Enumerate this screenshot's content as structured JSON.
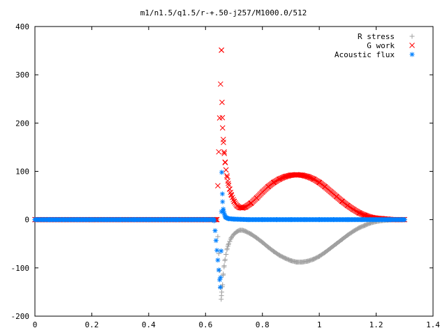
{
  "chart_data": {
    "type": "scatter",
    "title": "m1/n1.5/q1.5/r-+.50-j257/M1000.0/512",
    "xlabel": "",
    "ylabel": "",
    "xlim": [
      0,
      1.4
    ],
    "ylim": [
      -200,
      400
    ],
    "x_ticks": [
      "0",
      "0.2",
      "0.4",
      "0.6",
      "0.8",
      "1",
      "1.2",
      "1.4"
    ],
    "y_ticks": [
      "-200",
      "-100",
      "0",
      "100",
      "200",
      "300",
      "400"
    ],
    "grid": false,
    "legend_position": "top-right",
    "series": [
      {
        "name": "R stress",
        "marker": "plus",
        "color": "#a0a0a0",
        "x": [
          0.0,
          0.1,
          0.2,
          0.3,
          0.4,
          0.5,
          0.6,
          0.64,
          0.655,
          0.657,
          0.66,
          0.662,
          0.665,
          0.668,
          0.672,
          0.676,
          0.68,
          0.685,
          0.69,
          0.7,
          0.71,
          0.72,
          0.73,
          0.74,
          0.76,
          0.78,
          0.8,
          0.82,
          0.84,
          0.86,
          0.88,
          0.9,
          0.92,
          0.94,
          0.96,
          0.98,
          1.0,
          1.02,
          1.04,
          1.06,
          1.08,
          1.1,
          1.12,
          1.14,
          1.16,
          1.18,
          1.2,
          1.22,
          1.24,
          1.26,
          1.28,
          1.3
        ],
        "y": [
          0,
          0,
          0,
          0,
          0,
          0,
          0,
          0,
          -165,
          -150,
          -135,
          -115,
          -98,
          -85,
          -72,
          -60,
          -52,
          -45,
          -38,
          -30,
          -25,
          -22,
          -22,
          -24,
          -30,
          -38,
          -47,
          -57,
          -66,
          -74,
          -80,
          -85,
          -88,
          -88,
          -86,
          -82,
          -76,
          -68,
          -59,
          -50,
          -41,
          -32,
          -24,
          -17,
          -12,
          -7,
          -4,
          -2,
          -1,
          0,
          0,
          0
        ]
      },
      {
        "name": "G work",
        "marker": "cross",
        "color": "#ff0000",
        "x": [
          0.0,
          0.1,
          0.2,
          0.3,
          0.4,
          0.5,
          0.6,
          0.64,
          0.656,
          0.658,
          0.66,
          0.663,
          0.666,
          0.669,
          0.672,
          0.676,
          0.68,
          0.685,
          0.69,
          0.7,
          0.71,
          0.72,
          0.73,
          0.74,
          0.76,
          0.78,
          0.8,
          0.82,
          0.84,
          0.86,
          0.88,
          0.9,
          0.92,
          0.94,
          0.96,
          0.98,
          1.0,
          1.02,
          1.04,
          1.06,
          1.08,
          1.1,
          1.12,
          1.14,
          1.16,
          1.18,
          1.2,
          1.22,
          1.24,
          1.26,
          1.28,
          1.3
        ],
        "y": [
          0,
          0,
          0,
          0,
          0,
          0,
          0,
          0,
          351,
          243,
          190,
          160,
          137,
          118,
          103,
          88,
          75,
          63,
          52,
          38,
          29,
          25,
          24,
          26,
          34,
          45,
          57,
          68,
          77,
          84,
          89,
          92,
          93,
          92,
          89,
          84,
          77,
          68,
          58,
          48,
          38,
          29,
          21,
          14,
          9,
          5,
          3,
          2,
          1,
          0,
          0,
          0
        ]
      },
      {
        "name": "Acoustic flux",
        "marker": "star",
        "color": "#0080ff",
        "x": [
          0.0,
          0.05,
          0.1,
          0.15,
          0.2,
          0.25,
          0.3,
          0.35,
          0.4,
          0.45,
          0.5,
          0.55,
          0.6,
          0.63,
          0.652,
          0.655,
          0.657,
          0.66,
          0.663,
          0.667,
          0.67,
          0.68,
          0.7,
          0.75,
          0.8,
          0.85,
          0.9,
          0.95,
          1.0,
          1.05,
          1.1,
          1.15,
          1.2,
          1.25,
          1.3
        ],
        "y": [
          0,
          0,
          0,
          0,
          0,
          0,
          0,
          0,
          0,
          0,
          0,
          0,
          0,
          0,
          -140,
          -65,
          98,
          37,
          18,
          10,
          5,
          2,
          1,
          0,
          0,
          0,
          0,
          0,
          0,
          0,
          0,
          0,
          0,
          0,
          0
        ]
      }
    ]
  }
}
